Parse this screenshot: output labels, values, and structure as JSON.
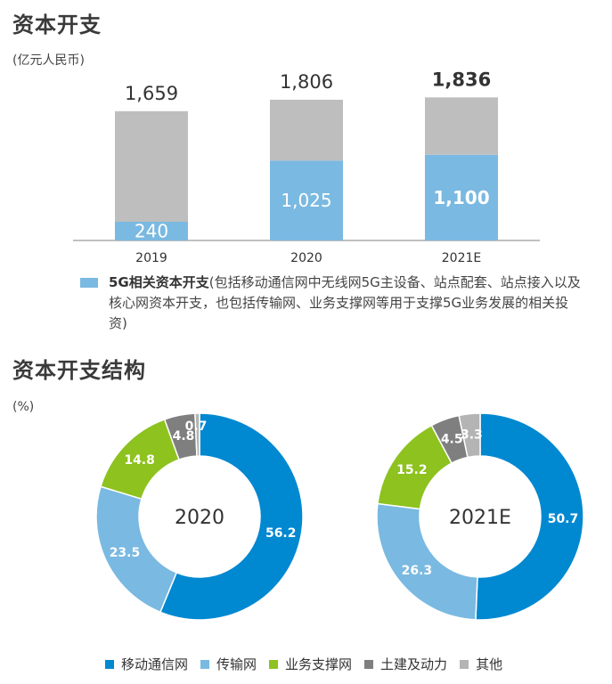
{
  "sections": {
    "capex_title": "资本开支",
    "capex_unit": "(亿元人民币)",
    "structure_title": "资本开支结构",
    "structure_unit": "(%)"
  },
  "legend_5g": {
    "bold": "5G相关资本开支",
    "rest": "(包括移动通信网中无线网5G主设备、站点配套、站点接入以及核心网资本开支，也包括传输网、业务支撑网等用于支撑5G业务发展的相关投资)",
    "color": "#7ab9e1"
  },
  "chart_data": [
    {
      "type": "bar",
      "stacked": true,
      "categories": [
        "2019",
        "2020",
        "2021E"
      ],
      "totals": [
        "1,659",
        "1,806",
        "1,836"
      ],
      "total_values": [
        1659,
        1806,
        1836
      ],
      "series": [
        {
          "name": "5G相关资本开支",
          "values": [
            240,
            1025,
            1100
          ],
          "labels": [
            "240",
            "1,025",
            "1,100"
          ],
          "color": "#7ab9e1"
        },
        {
          "values": [
            1419,
            781,
            736
          ],
          "color": "#bebebe"
        }
      ],
      "highlight_category": "2021E",
      "grid": false
    },
    {
      "type": "pie",
      "donut": true,
      "center_label": "2020",
      "slices": [
        {
          "name": "移动通信网",
          "value": 56.2,
          "label": "56.2",
          "color": "#0088d1"
        },
        {
          "name": "传输网",
          "value": 23.5,
          "label": "23.5",
          "color": "#7ab9e1"
        },
        {
          "name": "业务支撑网",
          "value": 14.8,
          "label": "14.8",
          "color": "#8dc21f"
        },
        {
          "name": "土建及动力",
          "value": 4.8,
          "label": "4.8",
          "color": "#7f7f7f"
        },
        {
          "name": "其他",
          "value": 0.7,
          "label": "0.7",
          "color": "#b4b4b4"
        }
      ]
    },
    {
      "type": "pie",
      "donut": true,
      "center_label": "2021E",
      "slices": [
        {
          "name": "移动通信网",
          "value": 50.7,
          "label": "50.7",
          "color": "#0088d1"
        },
        {
          "name": "传输网",
          "value": 26.3,
          "label": "26.3",
          "color": "#7ab9e1"
        },
        {
          "name": "业务支撑网",
          "value": 15.2,
          "label": "15.2",
          "color": "#8dc21f"
        },
        {
          "name": "土建及动力",
          "value": 4.5,
          "label": "4.5",
          "color": "#7f7f7f"
        },
        {
          "name": "其他",
          "value": 3.3,
          "label": "3.3",
          "color": "#b4b4b4"
        }
      ]
    }
  ],
  "donut_legend": [
    {
      "name": "移动通信网",
      "color": "#0088d1"
    },
    {
      "name": "传输网",
      "color": "#7ab9e1"
    },
    {
      "name": "业务支撑网",
      "color": "#8dc21f"
    },
    {
      "name": "土建及动力",
      "color": "#7f7f7f"
    },
    {
      "name": "其他",
      "color": "#b4b4b4"
    }
  ]
}
